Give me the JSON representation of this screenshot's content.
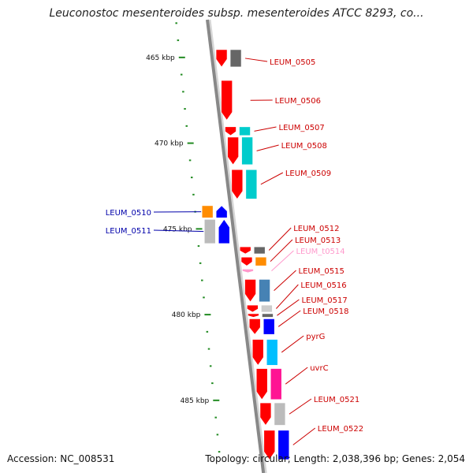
{
  "title": "Leuconostoc mesenteroides subsp. mesenteroides ATCC 8293, co...",
  "footer": {
    "accession": "Accession: NC_008531",
    "topology": "Topology: circular; Length: 2,038,396 bp; Genes: 2,054"
  },
  "scale": {
    "unit": "kbp",
    "ticks": [
      {
        "label": "465 kbp",
        "value": 465
      },
      {
        "label": "470 kbp",
        "value": 470
      },
      {
        "label": "475 kbp",
        "value": 475
      },
      {
        "label": "480 kbp",
        "value": 480
      },
      {
        "label": "485 kbp",
        "value": 485
      }
    ]
  },
  "colors": {
    "strand_forward": "#ff0000",
    "strand_reverse": "#0000ff",
    "label_forward": "#cc0000",
    "label_reverse": "#0000aa",
    "label_rna": "#ff99cc",
    "axis": "#888888",
    "scale_dash": "#228b22"
  },
  "genes": [
    {
      "name": "LEUM_0505",
      "strand": "forward",
      "start": 464.5,
      "end": 465.6,
      "cog_color": "#666666"
    },
    {
      "name": "LEUM_0506",
      "strand": "forward",
      "start": 466.3,
      "end": 468.7,
      "cog_color": ""
    },
    {
      "name": "LEUM_0507",
      "strand": "forward",
      "start": 469.0,
      "end": 469.6,
      "cog_color": "#00cccc"
    },
    {
      "name": "LEUM_0508",
      "strand": "forward",
      "start": 469.6,
      "end": 471.3,
      "cog_color": "#00cccc"
    },
    {
      "name": "LEUM_0509",
      "strand": "forward",
      "start": 471.5,
      "end": 473.3,
      "cog_color": "#00cccc"
    },
    {
      "name": "LEUM_0510",
      "strand": "reverse",
      "start": 473.6,
      "end": 474.4,
      "cog_color": "#ff8c00"
    },
    {
      "name": "LEUM_0511",
      "strand": "reverse",
      "start": 474.4,
      "end": 475.9,
      "cog_color": "#bbbbbb"
    },
    {
      "name": "LEUM_0512",
      "strand": "forward",
      "start": 476.0,
      "end": 476.5,
      "cog_color": "#666666"
    },
    {
      "name": "LEUM_0513",
      "strand": "forward",
      "start": 476.6,
      "end": 477.2,
      "cog_color": "#ff8c00"
    },
    {
      "name": "LEUM_t0514",
      "strand": "forward",
      "start": 477.3,
      "end": 477.6,
      "cog_color": "",
      "kind": "tRNA"
    },
    {
      "name": "LEUM_0515",
      "strand": "forward",
      "start": 477.9,
      "end": 479.3,
      "cog_color": "#4682b4"
    },
    {
      "name": "LEUM_0516",
      "strand": "forward",
      "start": 479.4,
      "end": 479.9,
      "cog_color": "#cccccc"
    },
    {
      "name": "LEUM_0517",
      "strand": "forward",
      "start": 479.9,
      "end": 480.2,
      "cog_color": "#666666"
    },
    {
      "name": "LEUM_0518",
      "strand": "forward",
      "start": 480.2,
      "end": 481.2,
      "cog_color": "#0000ff"
    },
    {
      "name": "pyrG",
      "strand": "forward",
      "start": 481.4,
      "end": 483.0,
      "cog_color": "#00bfff"
    },
    {
      "name": "uvrC",
      "strand": "forward",
      "start": 483.1,
      "end": 485.0,
      "cog_color": "#ff1493"
    },
    {
      "name": "LEUM_0521",
      "strand": "forward",
      "start": 485.1,
      "end": 486.5,
      "cog_color": "#bbbbbb"
    },
    {
      "name": "LEUM_0522",
      "strand": "forward",
      "start": 486.7,
      "end": 488.5,
      "cog_color": "#0000ff"
    }
  ]
}
